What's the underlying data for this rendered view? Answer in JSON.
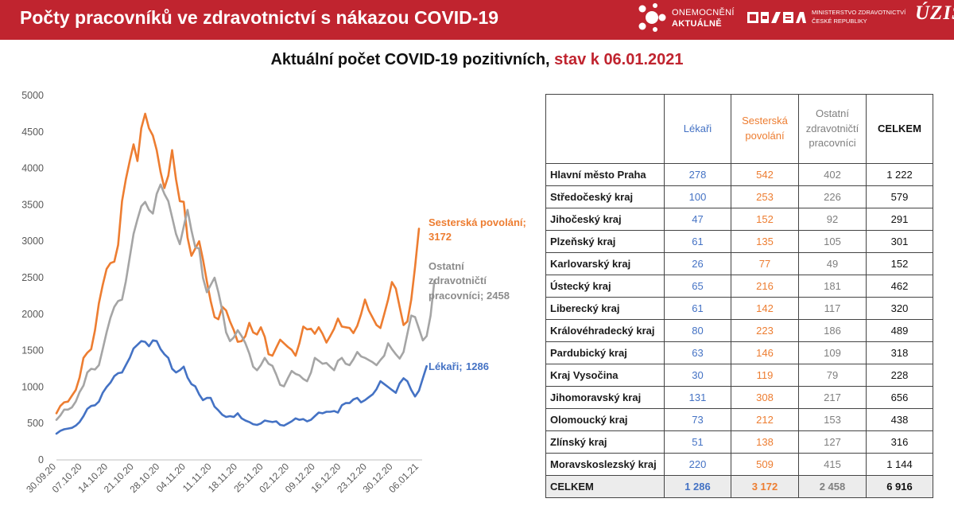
{
  "header": {
    "title": "Počty pracovníků ve zdravotnictví s nákazou COVID-19",
    "logos": {
      "onemocneni_line1": "ONEMOCNĚNÍ",
      "onemocneni_line2": "AKTUÁLNĚ",
      "ministry_line1": "MINISTERSTVO ZDRAVOTNICTVÍ",
      "ministry_line2": "ČESKÉ REPUBLIKY",
      "uzis": "ÚZIS"
    }
  },
  "subtitle": {
    "main": "Aktuální počet COVID-19 pozitivních, ",
    "date": "stav k 06.01.2021"
  },
  "colors": {
    "brand": "#c0242f",
    "lekari": "#4472c4",
    "sesterska": "#ed7d31",
    "ostatni": "#a5a5a5"
  },
  "chart_data": {
    "type": "line",
    "x_start": "30.09.20",
    "x_end": "06.01.21",
    "x_ticks": [
      "30.09.20",
      "07.10.20",
      "14.10.20",
      "21.10.20",
      "28.10.20",
      "04.11.20",
      "11.11.20",
      "18.11.20",
      "25.11.20",
      "02.12.20",
      "09.12.20",
      "16.12.20",
      "23.12.20",
      "30.12.20",
      "06.01.21"
    ],
    "y_ticks": [
      0,
      500,
      1000,
      1500,
      2000,
      2500,
      3000,
      3500,
      4000,
      4500,
      5000
    ],
    "ylim": [
      0,
      5000
    ],
    "grid": false,
    "series": [
      {
        "name": "Sesterská povolání",
        "color": "#ed7d31",
        "end_label": "Sesterská povolání;",
        "end_value": "3172",
        "values": [
          640,
          740,
          790,
          800,
          880,
          960,
          1130,
          1400,
          1470,
          1520,
          1780,
          2150,
          2400,
          2620,
          2700,
          2720,
          2950,
          3550,
          3850,
          4100,
          4330,
          4100,
          4550,
          4750,
          4550,
          4450,
          4250,
          3950,
          3730,
          3900,
          4250,
          3850,
          3550,
          3540,
          3050,
          2800,
          2900,
          3000,
          2750,
          2450,
          2180,
          1960,
          1930,
          2100,
          2050,
          1900,
          1780,
          1620,
          1630,
          1700,
          1880,
          1750,
          1720,
          1820,
          1690,
          1450,
          1430,
          1540,
          1650,
          1600,
          1550,
          1510,
          1430,
          1600,
          1830,
          1790,
          1800,
          1730,
          1820,
          1730,
          1610,
          1700,
          1800,
          1940,
          1830,
          1820,
          1810,
          1740,
          1840,
          2000,
          2200,
          2050,
          1950,
          1850,
          1810,
          2000,
          2200,
          2440,
          2350,
          2100,
          1850,
          1900,
          2200,
          2650,
          3172
        ]
      },
      {
        "name": "Ostatní zdravotničtí pracovníci",
        "color": "#a5a5a5",
        "end_label": [
          "Ostatní",
          "zdravotničtí",
          "pracovníci;"
        ],
        "end_value": "2458",
        "values": [
          550,
          610,
          690,
          690,
          720,
          800,
          930,
          1020,
          1200,
          1250,
          1240,
          1300,
          1520,
          1750,
          1950,
          2100,
          2180,
          2200,
          2450,
          2780,
          3100,
          3300,
          3480,
          3540,
          3430,
          3380,
          3650,
          3780,
          3650,
          3550,
          3330,
          3100,
          2960,
          3200,
          3430,
          3150,
          2920,
          2900,
          2500,
          2300,
          2400,
          2500,
          2300,
          2050,
          1750,
          1630,
          1680,
          1780,
          1700,
          1600,
          1460,
          1280,
          1230,
          1300,
          1400,
          1320,
          1290,
          1170,
          1030,
          1010,
          1120,
          1220,
          1180,
          1160,
          1110,
          1080,
          1200,
          1400,
          1360,
          1320,
          1330,
          1280,
          1230,
          1360,
          1400,
          1320,
          1300,
          1380,
          1480,
          1420,
          1400,
          1370,
          1340,
          1300,
          1370,
          1430,
          1600,
          1520,
          1450,
          1390,
          1480,
          1730,
          1980,
          1960,
          1800,
          1640,
          1700,
          1980,
          2458
        ]
      },
      {
        "name": "Lékaři",
        "color": "#4472c4",
        "end_label": "Lékaři;",
        "end_value": "1286",
        "values": [
          360,
          400,
          420,
          430,
          440,
          470,
          520,
          600,
          700,
          740,
          750,
          800,
          920,
          1000,
          1060,
          1150,
          1190,
          1200,
          1300,
          1400,
          1530,
          1580,
          1630,
          1620,
          1560,
          1640,
          1630,
          1520,
          1450,
          1400,
          1250,
          1200,
          1230,
          1280,
          1130,
          1040,
          1010,
          900,
          820,
          850,
          850,
          730,
          680,
          620,
          590,
          600,
          590,
          640,
          570,
          540,
          520,
          490,
          480,
          500,
          540,
          530,
          520,
          530,
          480,
          470,
          500,
          530,
          570,
          550,
          560,
          530,
          550,
          600,
          650,
          640,
          660,
          660,
          670,
          650,
          750,
          780,
          780,
          830,
          850,
          790,
          820,
          860,
          900,
          970,
          1080,
          1040,
          1000,
          960,
          920,
          1050,
          1120,
          1080,
          960,
          870,
          950,
          1120,
          1286
        ]
      }
    ]
  },
  "table": {
    "headers": {
      "region": "",
      "lekari": [
        "Lékaři"
      ],
      "sesterska": [
        "Sesterská",
        "povolání"
      ],
      "ostatni": [
        "Ostatní",
        "zdravotničtí",
        "pracovníci"
      ],
      "celkem": [
        "CELKEM"
      ]
    },
    "rows": [
      {
        "region": "Hlavní město Praha",
        "lekari": "278",
        "sesterska": "542",
        "ostatni": "402",
        "celkem": "1 222"
      },
      {
        "region": "Středočeský kraj",
        "lekari": "100",
        "sesterska": "253",
        "ostatni": "226",
        "celkem": "579"
      },
      {
        "region": "Jihočeský kraj",
        "lekari": "47",
        "sesterska": "152",
        "ostatni": "92",
        "celkem": "291"
      },
      {
        "region": "Plzeňský kraj",
        "lekari": "61",
        "sesterska": "135",
        "ostatni": "105",
        "celkem": "301"
      },
      {
        "region": "Karlovarský kraj",
        "lekari": "26",
        "sesterska": "77",
        "ostatni": "49",
        "celkem": "152"
      },
      {
        "region": "Ústecký kraj",
        "lekari": "65",
        "sesterska": "216",
        "ostatni": "181",
        "celkem": "462"
      },
      {
        "region": "Liberecký kraj",
        "lekari": "61",
        "sesterska": "142",
        "ostatni": "117",
        "celkem": "320"
      },
      {
        "region": "Královéhradecký kraj",
        "lekari": "80",
        "sesterska": "223",
        "ostatni": "186",
        "celkem": "489"
      },
      {
        "region": "Pardubický kraj",
        "lekari": "63",
        "sesterska": "146",
        "ostatni": "109",
        "celkem": "318"
      },
      {
        "region": "Kraj Vysočina",
        "lekari": "30",
        "sesterska": "119",
        "ostatni": "79",
        "celkem": "228"
      },
      {
        "region": "Jihomoravský kraj",
        "lekari": "131",
        "sesterska": "308",
        "ostatni": "217",
        "celkem": "656"
      },
      {
        "region": "Olomoucký kraj",
        "lekari": "73",
        "sesterska": "212",
        "ostatni": "153",
        "celkem": "438"
      },
      {
        "region": "Zlínský kraj",
        "lekari": "51",
        "sesterska": "138",
        "ostatni": "127",
        "celkem": "316"
      },
      {
        "region": "Moravskoslezský kraj",
        "lekari": "220",
        "sesterska": "509",
        "ostatni": "415",
        "celkem": "1 144"
      }
    ],
    "total": {
      "region": "CELKEM",
      "lekari": "1 286",
      "sesterska": "3 172",
      "ostatni": "2 458",
      "celkem": "6 916"
    }
  }
}
